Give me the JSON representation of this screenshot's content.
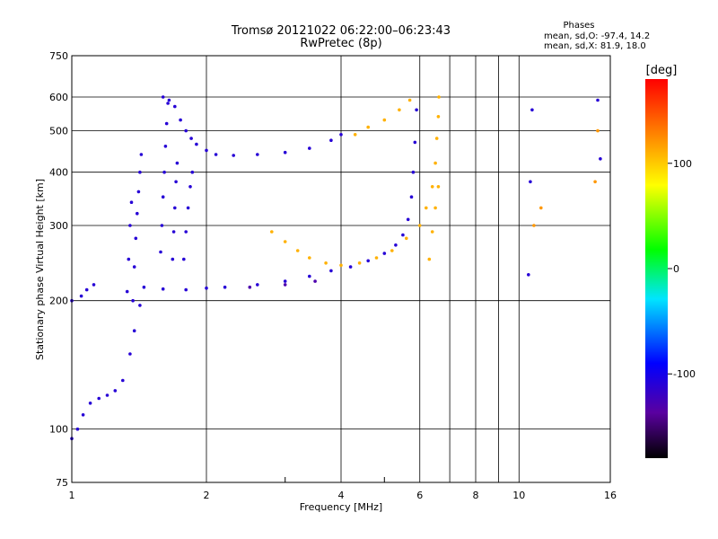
{
  "chart_data": {
    "type": "scatter",
    "title": "Tromsø 20121022 06:22:00–06:23:43",
    "subtitle": "RwPretec (8p)",
    "xlabel": "Frequency [MHz]",
    "ylabel": "Stationary phase Virtual Height [km]",
    "x_scale": "log",
    "y_scale": "log",
    "xlim": [
      1,
      16
    ],
    "ylim": [
      75,
      750
    ],
    "x_ticks": [
      1,
      2,
      4,
      6,
      8,
      10,
      16
    ],
    "x_tick_labels": [
      "1",
      "2",
      "4",
      "6",
      "8",
      "10",
      "16"
    ],
    "y_ticks": [
      75,
      100,
      200,
      300,
      400,
      500,
      600,
      750
    ],
    "y_tick_labels": [
      "75",
      "100",
      "200",
      "300",
      "400",
      "500",
      "600",
      "750"
    ],
    "grid": true,
    "phase_stats": {
      "heading": "Phases",
      "line_o": "mean, sd,O:  -97.4, 14.2",
      "line_x": "mean, sd,X:   81.9, 18.0"
    },
    "colorbar": {
      "label": "[deg]",
      "range": [
        -180,
        180
      ],
      "ticks": [
        100,
        0,
        -100
      ],
      "tick_labels": [
        "100",
        "0",
        "-100"
      ]
    },
    "traces": [
      {
        "phase": -110,
        "points": [
          [
            1.0,
            200
          ],
          [
            1.05,
            205
          ],
          [
            1.08,
            212
          ],
          [
            1.12,
            218
          ]
        ]
      },
      {
        "phase": -110,
        "points": [
          [
            1.0,
            95
          ],
          [
            1.03,
            100
          ],
          [
            1.06,
            108
          ],
          [
            1.1,
            115
          ],
          [
            1.15,
            118
          ],
          [
            1.2,
            120
          ],
          [
            1.25,
            123
          ],
          [
            1.3,
            130
          ],
          [
            1.35,
            150
          ],
          [
            1.38,
            170
          ],
          [
            1.42,
            195
          ],
          [
            1.45,
            215
          ]
        ]
      },
      {
        "phase": -110,
        "points": [
          [
            1.37,
            200
          ],
          [
            1.38,
            240
          ],
          [
            1.39,
            280
          ],
          [
            1.4,
            320
          ],
          [
            1.41,
            360
          ],
          [
            1.42,
            400
          ],
          [
            1.43,
            440
          ]
        ]
      },
      {
        "phase": -110,
        "points": [
          [
            1.33,
            210
          ],
          [
            1.34,
            250
          ],
          [
            1.35,
            300
          ],
          [
            1.36,
            340
          ]
        ]
      },
      {
        "phase": -110,
        "points": [
          [
            1.58,
            260
          ],
          [
            1.59,
            300
          ],
          [
            1.6,
            350
          ],
          [
            1.61,
            400
          ],
          [
            1.62,
            460
          ],
          [
            1.63,
            520
          ],
          [
            1.64,
            580
          ]
        ]
      },
      {
        "phase": -110,
        "points": [
          [
            1.68,
            250
          ],
          [
            1.69,
            290
          ],
          [
            1.7,
            330
          ],
          [
            1.71,
            380
          ],
          [
            1.72,
            420
          ]
        ]
      },
      {
        "phase": -110,
        "points": [
          [
            1.78,
            250
          ],
          [
            1.8,
            290
          ],
          [
            1.82,
            330
          ],
          [
            1.84,
            370
          ],
          [
            1.86,
            400
          ]
        ]
      },
      {
        "phase": -110,
        "points": [
          [
            1.6,
            600
          ],
          [
            1.65,
            590
          ],
          [
            1.7,
            570
          ],
          [
            1.75,
            530
          ],
          [
            1.8,
            500
          ],
          [
            1.85,
            480
          ],
          [
            1.9,
            465
          ],
          [
            2.0,
            450
          ],
          [
            2.1,
            440
          ],
          [
            2.3,
            438
          ],
          [
            2.6,
            440
          ],
          [
            3.0,
            445
          ],
          [
            3.4,
            455
          ],
          [
            3.8,
            475
          ],
          [
            4.0,
            490
          ]
        ]
      },
      {
        "phase": -110,
        "points": [
          [
            1.6,
            213
          ],
          [
            1.8,
            212
          ],
          [
            2.0,
            214
          ],
          [
            2.2,
            215
          ],
          [
            2.6,
            218
          ],
          [
            3.0,
            222
          ],
          [
            3.4,
            228
          ],
          [
            3.8,
            235
          ],
          [
            4.2,
            240
          ],
          [
            4.6,
            248
          ],
          [
            5.0,
            258
          ],
          [
            5.3,
            270
          ],
          [
            5.5,
            285
          ],
          [
            5.65,
            310
          ],
          [
            5.75,
            350
          ],
          [
            5.8,
            400
          ],
          [
            5.85,
            470
          ],
          [
            5.9,
            560
          ]
        ]
      },
      {
        "phase": 110,
        "points": [
          [
            4.3,
            490
          ],
          [
            4.6,
            510
          ],
          [
            5.0,
            530
          ],
          [
            5.4,
            560
          ],
          [
            5.7,
            590
          ]
        ]
      },
      {
        "phase": 110,
        "points": [
          [
            2.8,
            290
          ],
          [
            3.0,
            275
          ],
          [
            3.2,
            262
          ],
          [
            3.4,
            252
          ],
          [
            3.7,
            245
          ],
          [
            4.0,
            242
          ],
          [
            4.4,
            245
          ],
          [
            4.8,
            252
          ],
          [
            5.2,
            262
          ],
          [
            5.6,
            280
          ],
          [
            6.0,
            300
          ],
          [
            6.2,
            330
          ],
          [
            6.4,
            370
          ],
          [
            6.5,
            420
          ],
          [
            6.55,
            480
          ],
          [
            6.6,
            540
          ],
          [
            6.62,
            600
          ]
        ]
      },
      {
        "phase": 110,
        "points": [
          [
            6.3,
            250
          ],
          [
            6.4,
            290
          ],
          [
            6.5,
            330
          ],
          [
            6.6,
            370
          ]
        ]
      },
      {
        "phase": -130,
        "points": [
          [
            2.5,
            215
          ],
          [
            3.0,
            218
          ],
          [
            3.5,
            222
          ]
        ]
      },
      {
        "phase": -110,
        "points": [
          [
            10.5,
            230
          ],
          [
            10.6,
            380
          ],
          [
            10.7,
            560
          ],
          [
            15.0,
            590
          ],
          [
            15.2,
            430
          ]
        ]
      },
      {
        "phase": 120,
        "points": [
          [
            10.8,
            300
          ],
          [
            11.2,
            330
          ],
          [
            14.8,
            380
          ],
          [
            15.0,
            500
          ]
        ]
      }
    ]
  }
}
